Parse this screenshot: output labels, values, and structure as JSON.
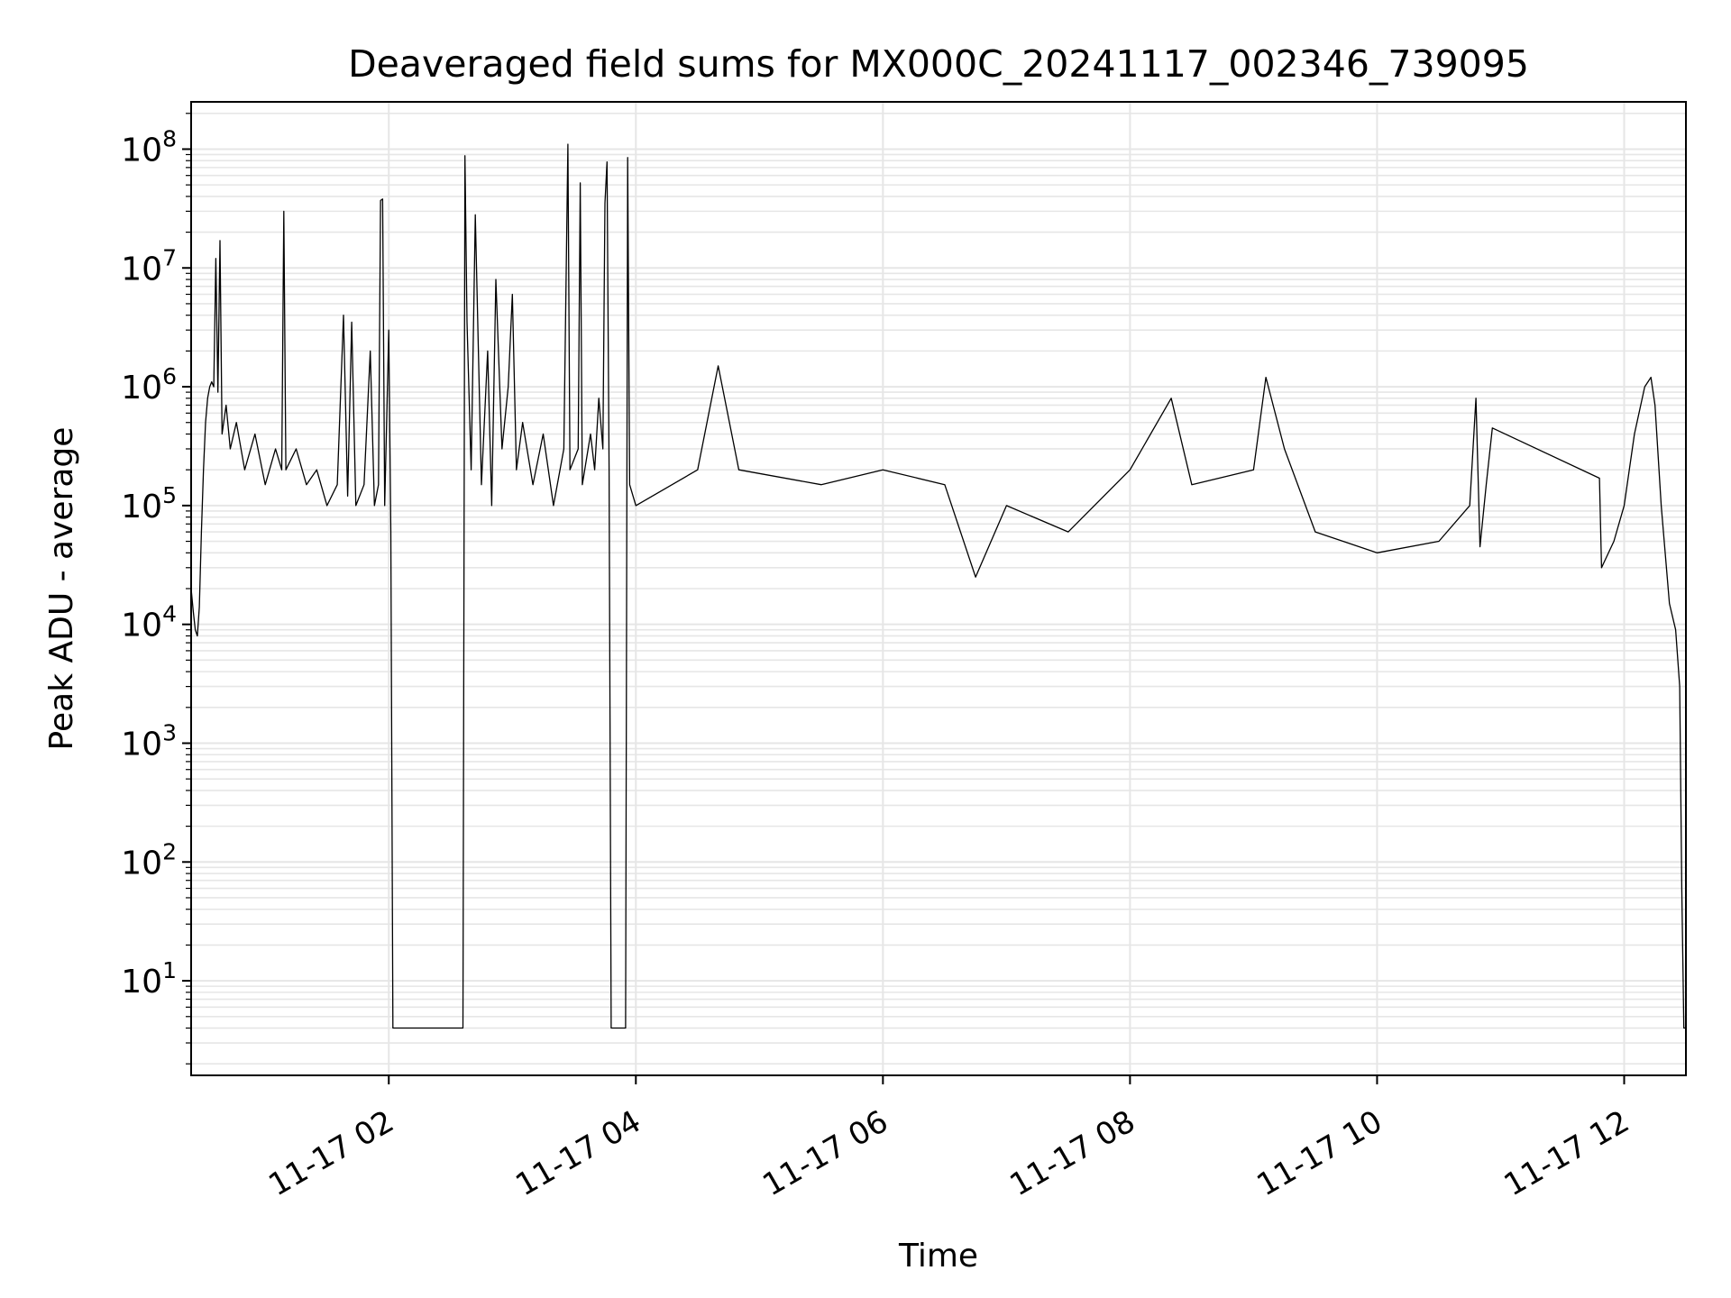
{
  "chart_data": {
    "type": "line",
    "title": "Deaveraged field sums for MX000C_20241117_002346_739095",
    "xlabel": "Time",
    "ylabel": "Peak ADU - average",
    "x_type": "time",
    "x_range": [
      "2024-11-17 00:24",
      "2024-11-17 12:30"
    ],
    "y_scale": "log",
    "ylim": [
      1.6,
      250000000
    ],
    "grid": true,
    "legend": null,
    "line_color": "#000000",
    "grid_color": "#e6e6e6",
    "x_ticks": [
      {
        "time": "2024-11-17 02:00",
        "label": "11-17 02"
      },
      {
        "time": "2024-11-17 04:00",
        "label": "11-17 04"
      },
      {
        "time": "2024-11-17 06:00",
        "label": "11-17 06"
      },
      {
        "time": "2024-11-17 08:00",
        "label": "11-17 08"
      },
      {
        "time": "2024-11-17 10:00",
        "label": "11-17 10"
      },
      {
        "time": "2024-11-17 12:00",
        "label": "11-17 12"
      }
    ],
    "y_ticks": [
      {
        "value": 10,
        "base": "10",
        "exp": "1"
      },
      {
        "value": 100,
        "base": "10",
        "exp": "2"
      },
      {
        "value": 1000,
        "base": "10",
        "exp": "3"
      },
      {
        "value": 10000,
        "base": "10",
        "exp": "4"
      },
      {
        "value": 100000,
        "base": "10",
        "exp": "5"
      },
      {
        "value": 1000000,
        "base": "10",
        "exp": "6"
      },
      {
        "value": 10000000,
        "base": "10",
        "exp": "7"
      },
      {
        "value": 100000000,
        "base": "10",
        "exp": "8"
      }
    ],
    "series": [
      {
        "points": [
          [
            "2024-11-17 00:24",
            20000
          ],
          [
            "2024-11-17 00:25",
            13000
          ],
          [
            "2024-11-17 00:26",
            9000
          ],
          [
            "2024-11-17 00:27",
            8000
          ],
          [
            "2024-11-17 00:28",
            14000
          ],
          [
            "2024-11-17 00:29",
            60000
          ],
          [
            "2024-11-17 00:30",
            200000
          ],
          [
            "2024-11-17 00:31",
            500000
          ],
          [
            "2024-11-17 00:32",
            800000
          ],
          [
            "2024-11-17 00:33",
            1000000
          ],
          [
            "2024-11-17 00:34",
            1100000
          ],
          [
            "2024-11-17 00:35",
            1000000
          ],
          [
            "2024-11-17 00:36",
            12000000
          ],
          [
            "2024-11-17 00:37",
            900000
          ],
          [
            "2024-11-17 00:38",
            17000000
          ],
          [
            "2024-11-17 00:39",
            400000
          ],
          [
            "2024-11-17 00:41",
            700000
          ],
          [
            "2024-11-17 00:43",
            300000
          ],
          [
            "2024-11-17 00:46",
            500000
          ],
          [
            "2024-11-17 00:50",
            200000
          ],
          [
            "2024-11-17 00:55",
            400000
          ],
          [
            "2024-11-17 01:00",
            150000
          ],
          [
            "2024-11-17 01:05",
            300000
          ],
          [
            "2024-11-17 01:08",
            200000
          ],
          [
            "2024-11-17 01:09",
            30000000
          ],
          [
            "2024-11-17 01:10",
            200000
          ],
          [
            "2024-11-17 01:15",
            300000
          ],
          [
            "2024-11-17 01:20",
            150000
          ],
          [
            "2024-11-17 01:25",
            200000
          ],
          [
            "2024-11-17 01:30",
            100000
          ],
          [
            "2024-11-17 01:35",
            150000
          ],
          [
            "2024-11-17 01:38",
            4000000
          ],
          [
            "2024-11-17 01:40",
            120000
          ],
          [
            "2024-11-17 01:42",
            3500000
          ],
          [
            "2024-11-17 01:44",
            100000
          ],
          [
            "2024-11-17 01:48",
            150000
          ],
          [
            "2024-11-17 01:51",
            2000000
          ],
          [
            "2024-11-17 01:53",
            100000
          ],
          [
            "2024-11-17 01:55",
            150000
          ],
          [
            "2024-11-17 01:56",
            37000000
          ],
          [
            "2024-11-17 01:57",
            38000000
          ],
          [
            "2024-11-17 01:58",
            100000
          ],
          [
            "2024-11-17 02:00",
            3000000
          ],
          [
            "2024-11-17 02:01",
            60000
          ],
          [
            "2024-11-17 02:02",
            4
          ],
          [
            "2024-11-17 02:30",
            4
          ],
          [
            "2024-11-17 02:36",
            4
          ],
          [
            "2024-11-17 02:37",
            88000000
          ],
          [
            "2024-11-17 02:38",
            3500000
          ],
          [
            "2024-11-17 02:40",
            200000
          ],
          [
            "2024-11-17 02:42",
            28000000
          ],
          [
            "2024-11-17 02:45",
            150000
          ],
          [
            "2024-11-17 02:48",
            2000000
          ],
          [
            "2024-11-17 02:50",
            100000
          ],
          [
            "2024-11-17 02:52",
            8000000
          ],
          [
            "2024-11-17 02:55",
            300000
          ],
          [
            "2024-11-17 02:58",
            1000000
          ],
          [
            "2024-11-17 03:00",
            6000000
          ],
          [
            "2024-11-17 03:02",
            200000
          ],
          [
            "2024-11-17 03:05",
            500000
          ],
          [
            "2024-11-17 03:10",
            150000
          ],
          [
            "2024-11-17 03:15",
            400000
          ],
          [
            "2024-11-17 03:20",
            100000
          ],
          [
            "2024-11-17 03:25",
            300000
          ],
          [
            "2024-11-17 03:27",
            110000000
          ],
          [
            "2024-11-17 03:28",
            200000
          ],
          [
            "2024-11-17 03:32",
            300000
          ],
          [
            "2024-11-17 03:33",
            52000000
          ],
          [
            "2024-11-17 03:34",
            150000
          ],
          [
            "2024-11-17 03:38",
            400000
          ],
          [
            "2024-11-17 03:40",
            200000
          ],
          [
            "2024-11-17 03:42",
            800000
          ],
          [
            "2024-11-17 03:44",
            300000
          ],
          [
            "2024-11-17 03:45",
            35000000
          ],
          [
            "2024-11-17 03:46",
            78000000
          ],
          [
            "2024-11-17 03:47",
            200000
          ],
          [
            "2024-11-17 03:48",
            4
          ],
          [
            "2024-11-17 03:55",
            4
          ],
          [
            "2024-11-17 03:56",
            85000000
          ],
          [
            "2024-11-17 03:57",
            150000
          ],
          [
            "2024-11-17 04:00",
            100000
          ],
          [
            "2024-11-17 04:30",
            200000
          ],
          [
            "2024-11-17 04:40",
            1500000
          ],
          [
            "2024-11-17 04:50",
            200000
          ],
          [
            "2024-11-17 05:30",
            150000
          ],
          [
            "2024-11-17 06:00",
            200000
          ],
          [
            "2024-11-17 06:30",
            150000
          ],
          [
            "2024-11-17 06:45",
            25000
          ],
          [
            "2024-11-17 07:00",
            100000
          ],
          [
            "2024-11-17 07:30",
            60000
          ],
          [
            "2024-11-17 08:00",
            200000
          ],
          [
            "2024-11-17 08:20",
            800000
          ],
          [
            "2024-11-17 08:30",
            150000
          ],
          [
            "2024-11-17 09:00",
            200000
          ],
          [
            "2024-11-17 09:06",
            1200000
          ],
          [
            "2024-11-17 09:15",
            300000
          ],
          [
            "2024-11-17 09:30",
            60000
          ],
          [
            "2024-11-17 10:00",
            40000
          ],
          [
            "2024-11-17 10:30",
            50000
          ],
          [
            "2024-11-17 10:45",
            100000
          ],
          [
            "2024-11-17 10:48",
            800000
          ],
          [
            "2024-11-17 10:50",
            45000
          ],
          [
            "2024-11-17 10:53",
            150000
          ],
          [
            "2024-11-17 10:56",
            450000
          ],
          [
            "2024-11-17 11:48",
            170000
          ],
          [
            "2024-11-17 11:49",
            30000
          ],
          [
            "2024-11-17 11:55",
            50000
          ],
          [
            "2024-11-17 12:00",
            100000
          ],
          [
            "2024-11-17 12:05",
            400000
          ],
          [
            "2024-11-17 12:10",
            1000000
          ],
          [
            "2024-11-17 12:13",
            1200000
          ],
          [
            "2024-11-17 12:15",
            700000
          ],
          [
            "2024-11-17 12:18",
            100000
          ],
          [
            "2024-11-17 12:22",
            15000
          ],
          [
            "2024-11-17 12:25",
            9000
          ],
          [
            "2024-11-17 12:27",
            3000
          ],
          [
            "2024-11-17 12:28",
            60
          ],
          [
            "2024-11-17 12:29",
            4
          ],
          [
            "2024-11-17 12:30",
            4
          ]
        ]
      }
    ]
  }
}
